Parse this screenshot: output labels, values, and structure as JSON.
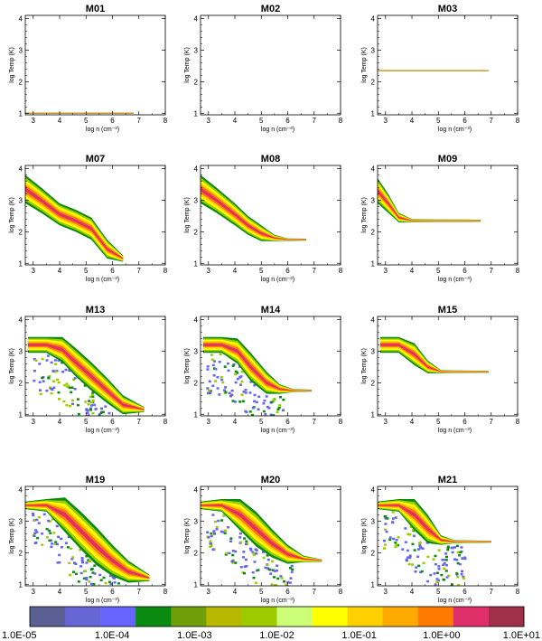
{
  "chart_data": {
    "type": "heatmap",
    "panels": [
      {
        "title": "M01",
        "xlabel": "log n (cm⁻³)",
        "ylabel": "log Temp (K)",
        "xlim": [
          2.7,
          8
        ],
        "ylim": [
          0.95,
          4.1
        ],
        "xticks": [
          "3",
          "4",
          "5",
          "6",
          "7",
          "8"
        ],
        "yticks": [
          "1",
          "2",
          "3",
          "4"
        ],
        "line": {
          "x": [
            2.7,
            6.8
          ],
          "y": 1.0
        },
        "band": null
      },
      {
        "title": "M02",
        "xlabel": "log n (cm⁻³)",
        "ylabel": "log Temp (K)",
        "xlim": [
          2.7,
          8
        ],
        "ylim": [
          0.95,
          4.1
        ],
        "xticks": [
          "3",
          "4",
          "5",
          "6",
          "7",
          "8"
        ],
        "yticks": [
          "1",
          "2",
          "3",
          "4"
        ],
        "line": null,
        "band": null
      },
      {
        "title": "M03",
        "xlabel": "log n (cm⁻³)",
        "ylabel": "log Temp (K)",
        "xlim": [
          2.7,
          8
        ],
        "ylim": [
          0.95,
          4.1
        ],
        "xticks": [
          "3",
          "4",
          "5",
          "6",
          "7",
          "8"
        ],
        "yticks": [
          "1",
          "2",
          "3",
          "4"
        ],
        "line": {
          "x": [
            2.7,
            6.9
          ],
          "y": 2.35
        },
        "band": null
      },
      {
        "title": "M07",
        "xlabel": "log n (cm⁻³)",
        "ylabel": "log Temp (K)",
        "xlim": [
          2.7,
          8
        ],
        "ylim": [
          0.95,
          4.1
        ],
        "xticks": [
          "3",
          "4",
          "5",
          "6",
          "7",
          "8"
        ],
        "yticks": [
          "1",
          "2",
          "3",
          "4"
        ],
        "line": null,
        "band": {
          "x": [
            2.7,
            3.3,
            4.0,
            4.6,
            5.2,
            5.8,
            6.4
          ],
          "y": [
            3.35,
            3.0,
            2.55,
            2.35,
            2.1,
            1.45,
            1.15
          ],
          "w": [
            0.45,
            0.4,
            0.35,
            0.35,
            0.35,
            0.3,
            0.1
          ]
        },
        "scatter": false
      },
      {
        "title": "M08",
        "xlabel": "log n (cm⁻³)",
        "ylabel": "log Temp (K)",
        "xlim": [
          2.7,
          8
        ],
        "ylim": [
          0.95,
          4.1
        ],
        "xticks": [
          "3",
          "4",
          "5",
          "6",
          "7",
          "8"
        ],
        "yticks": [
          "1",
          "2",
          "3",
          "4"
        ],
        "line": null,
        "band": {
          "x": [
            2.7,
            3.3,
            4.0,
            4.5,
            5.0,
            5.5,
            6.0,
            6.7
          ],
          "y": [
            3.35,
            3.0,
            2.55,
            2.2,
            1.95,
            1.8,
            1.75,
            1.75
          ],
          "w": [
            0.45,
            0.4,
            0.35,
            0.3,
            0.25,
            0.1,
            0.04,
            0.03
          ]
        },
        "scatter": false
      },
      {
        "title": "M09",
        "xlabel": "log n (cm⁻³)",
        "ylabel": "log Temp (K)",
        "xlim": [
          2.7,
          8
        ],
        "ylim": [
          0.95,
          4.1
        ],
        "xticks": [
          "3",
          "4",
          "5",
          "6",
          "7",
          "8"
        ],
        "yticks": [
          "1",
          "2",
          "3",
          "4"
        ],
        "line": null,
        "band": {
          "x": [
            2.7,
            3.1,
            3.5,
            4.0,
            5.0,
            6.0,
            6.6
          ],
          "y": [
            3.3,
            2.9,
            2.45,
            2.35,
            2.35,
            2.35,
            2.35
          ],
          "w": [
            0.4,
            0.3,
            0.15,
            0.05,
            0.04,
            0.04,
            0.03
          ]
        },
        "scatter": false
      },
      {
        "title": "M13",
        "xlabel": "log n (cm⁻³)",
        "ylabel": "log Temp (K)",
        "xlim": [
          2.7,
          8
        ],
        "ylim": [
          0.95,
          4.1
        ],
        "xticks": [
          "3",
          "4",
          "5",
          "6",
          "7",
          "8"
        ],
        "yticks": [
          "1",
          "2",
          "3",
          "4"
        ],
        "line": null,
        "band": {
          "x": [
            2.8,
            3.5,
            4.1,
            4.6,
            5.2,
            5.8,
            6.4,
            7.2
          ],
          "y": [
            3.2,
            3.2,
            3.05,
            2.65,
            2.2,
            1.75,
            1.3,
            1.15
          ],
          "w": [
            0.25,
            0.25,
            0.4,
            0.45,
            0.45,
            0.4,
            0.3,
            0.08
          ]
        },
        "scatter": true
      },
      {
        "title": "M14",
        "xlabel": "log n (cm⁻³)",
        "ylabel": "log Temp (K)",
        "xlim": [
          2.7,
          8
        ],
        "ylim": [
          0.95,
          4.1
        ],
        "xticks": [
          "3",
          "4",
          "5",
          "6",
          "7",
          "8"
        ],
        "yticks": [
          "1",
          "2",
          "3",
          "4"
        ],
        "line": null,
        "band": {
          "x": [
            2.8,
            3.5,
            4.1,
            4.6,
            5.2,
            5.7,
            6.2,
            6.9
          ],
          "y": [
            3.2,
            3.2,
            3.0,
            2.5,
            2.0,
            1.8,
            1.75,
            1.75
          ],
          "w": [
            0.25,
            0.25,
            0.4,
            0.45,
            0.35,
            0.15,
            0.05,
            0.03
          ]
        },
        "scatter": true
      },
      {
        "title": "M15",
        "xlabel": "log n (cm⁻³)",
        "ylabel": "log Temp (K)",
        "xlim": [
          2.7,
          8
        ],
        "ylim": [
          0.95,
          4.1
        ],
        "xticks": [
          "3",
          "4",
          "5",
          "6",
          "7",
          "8"
        ],
        "yticks": [
          "1",
          "2",
          "3",
          "4"
        ],
        "line": null,
        "band": {
          "x": [
            2.8,
            3.5,
            4.1,
            4.6,
            5.1,
            5.6,
            6.9
          ],
          "y": [
            3.2,
            3.2,
            2.9,
            2.5,
            2.35,
            2.35,
            2.35
          ],
          "w": [
            0.25,
            0.25,
            0.35,
            0.2,
            0.05,
            0.04,
            0.03
          ]
        },
        "scatter": false
      },
      {
        "title": "M19",
        "xlabel": "log n (cm⁻³)",
        "ylabel": "log Temp (K)",
        "xlim": [
          2.7,
          8
        ],
        "ylim": [
          0.95,
          4.1
        ],
        "xticks": [
          "3",
          "4",
          "5",
          "6",
          "7",
          "8"
        ],
        "yticks": [
          "1",
          "2",
          "3",
          "4"
        ],
        "line": null,
        "band": {
          "x": [
            2.7,
            3.5,
            4.2,
            4.8,
            5.4,
            6.0,
            6.6,
            7.4
          ],
          "y": [
            3.5,
            3.5,
            3.2,
            2.7,
            2.2,
            1.75,
            1.4,
            1.2
          ],
          "w": [
            0.12,
            0.2,
            0.55,
            0.6,
            0.6,
            0.5,
            0.35,
            0.1
          ]
        },
        "scatter": true
      },
      {
        "title": "M20",
        "xlabel": "log n (cm⁻³)",
        "ylabel": "log Temp (K)",
        "xlim": [
          2.7,
          8
        ],
        "ylim": [
          0.95,
          4.1
        ],
        "xticks": [
          "3",
          "4",
          "5",
          "6",
          "7",
          "8"
        ],
        "yticks": [
          "1",
          "2",
          "3",
          "4"
        ],
        "line": null,
        "band": {
          "x": [
            2.7,
            3.5,
            4.2,
            4.8,
            5.4,
            6.0,
            6.6,
            7.3
          ],
          "y": [
            3.5,
            3.5,
            3.2,
            2.75,
            2.3,
            1.95,
            1.8,
            1.75
          ],
          "w": [
            0.12,
            0.2,
            0.5,
            0.55,
            0.45,
            0.3,
            0.1,
            0.04
          ]
        },
        "scatter": true
      },
      {
        "title": "M21",
        "xlabel": "log n (cm⁻³)",
        "ylabel": "log Temp (K)",
        "xlim": [
          2.7,
          8
        ],
        "ylim": [
          0.95,
          4.1
        ],
        "xticks": [
          "3",
          "4",
          "5",
          "6",
          "7",
          "8"
        ],
        "yticks": [
          "1",
          "2",
          "3",
          "4"
        ],
        "line": null,
        "band": {
          "x": [
            2.7,
            3.5,
            4.1,
            4.6,
            5.1,
            5.6,
            6.2,
            7.0
          ],
          "y": [
            3.5,
            3.5,
            3.2,
            2.75,
            2.4,
            2.35,
            2.35,
            2.35
          ],
          "w": [
            0.12,
            0.2,
            0.5,
            0.45,
            0.15,
            0.05,
            0.04,
            0.03
          ]
        },
        "scatter": true
      }
    ],
    "colorbar": {
      "labels": [
        "1.0E-05",
        "1.0E-04",
        "1.0E-03",
        "1.0E-02",
        "1.0E-01",
        "1.0E+00",
        "1.0E+01"
      ],
      "colors": [
        "#5a5f94",
        "#6666d6",
        "#6666ff",
        "#0a8a10",
        "#6e9e08",
        "#b8b800",
        "#9ccc00",
        "#ccff77",
        "#ffff00",
        "#ffd000",
        "#ffaa00",
        "#ff7a00",
        "#e0306a",
        "#a0304a"
      ]
    }
  }
}
